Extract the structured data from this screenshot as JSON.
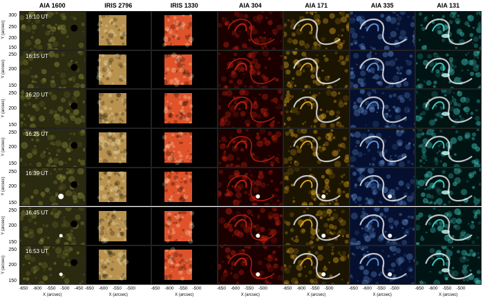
{
  "figure": {
    "columns": [
      {
        "name": "AIA 1600",
        "bg": "#2a2a10",
        "tone": "#8a8a3a",
        "kind": "aia1600"
      },
      {
        "name": "IRIS 2796",
        "bg": "#000000",
        "tone": "#b8924e",
        "kind": "iris2796"
      },
      {
        "name": "IRIS 1330",
        "bg": "#000000",
        "tone": "#e0532a",
        "kind": "iris1330"
      },
      {
        "name": "AIA 304",
        "bg": "#1a0000",
        "tone": "#c02010",
        "kind": "aia304"
      },
      {
        "name": "AIA 171",
        "bg": "#1a1400",
        "tone": "#d8a020",
        "kind": "aia171"
      },
      {
        "name": "AIA 335",
        "bg": "#051030",
        "tone": "#6090d0",
        "kind": "aia335"
      },
      {
        "name": "AIA 131",
        "bg": "#001414",
        "tone": "#40c8c0",
        "kind": "aia131"
      }
    ],
    "rows": [
      {
        "time": "16:10 UT"
      },
      {
        "time": "16:15 UT"
      },
      {
        "time": "16:20 UT"
      },
      {
        "time": "16:25 UT"
      },
      {
        "time": "16:39 UT"
      },
      {
        "time": "16:45 UT"
      },
      {
        "time": "16:53 UT"
      }
    ],
    "ylabel": "Y (arcsec)",
    "xlabel": "X (arcsec)",
    "yticks": [
      "300",
      "250",
      "200",
      "150"
    ],
    "xticks": [
      "-650",
      "-600",
      "-550",
      "-500",
      "-450"
    ]
  }
}
